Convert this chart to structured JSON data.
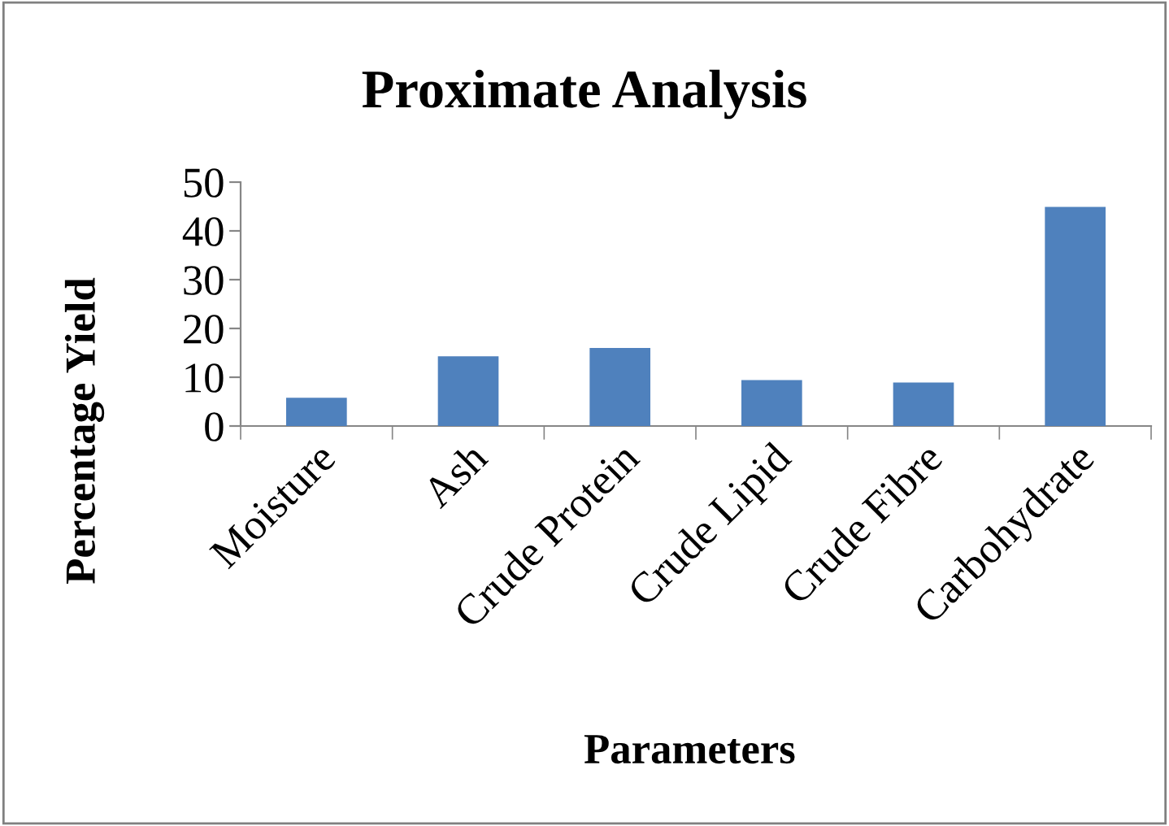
{
  "chart_data": {
    "type": "bar",
    "title": "Proximate Analysis",
    "xlabel": "Parameters",
    "ylabel": "Percentage Yield",
    "categories": [
      "Moisture",
      "Ash",
      "Crude Protein",
      "Crude Lipid",
      "Crude Fibre",
      "Carbohydrate"
    ],
    "values": [
      5.8,
      14.3,
      16.0,
      9.4,
      8.9,
      44.9
    ],
    "color": "#4f81bd",
    "ylim": [
      0,
      50
    ],
    "yticks": [
      0,
      10,
      20,
      30,
      40,
      50
    ],
    "grid": false,
    "legend": false
  }
}
